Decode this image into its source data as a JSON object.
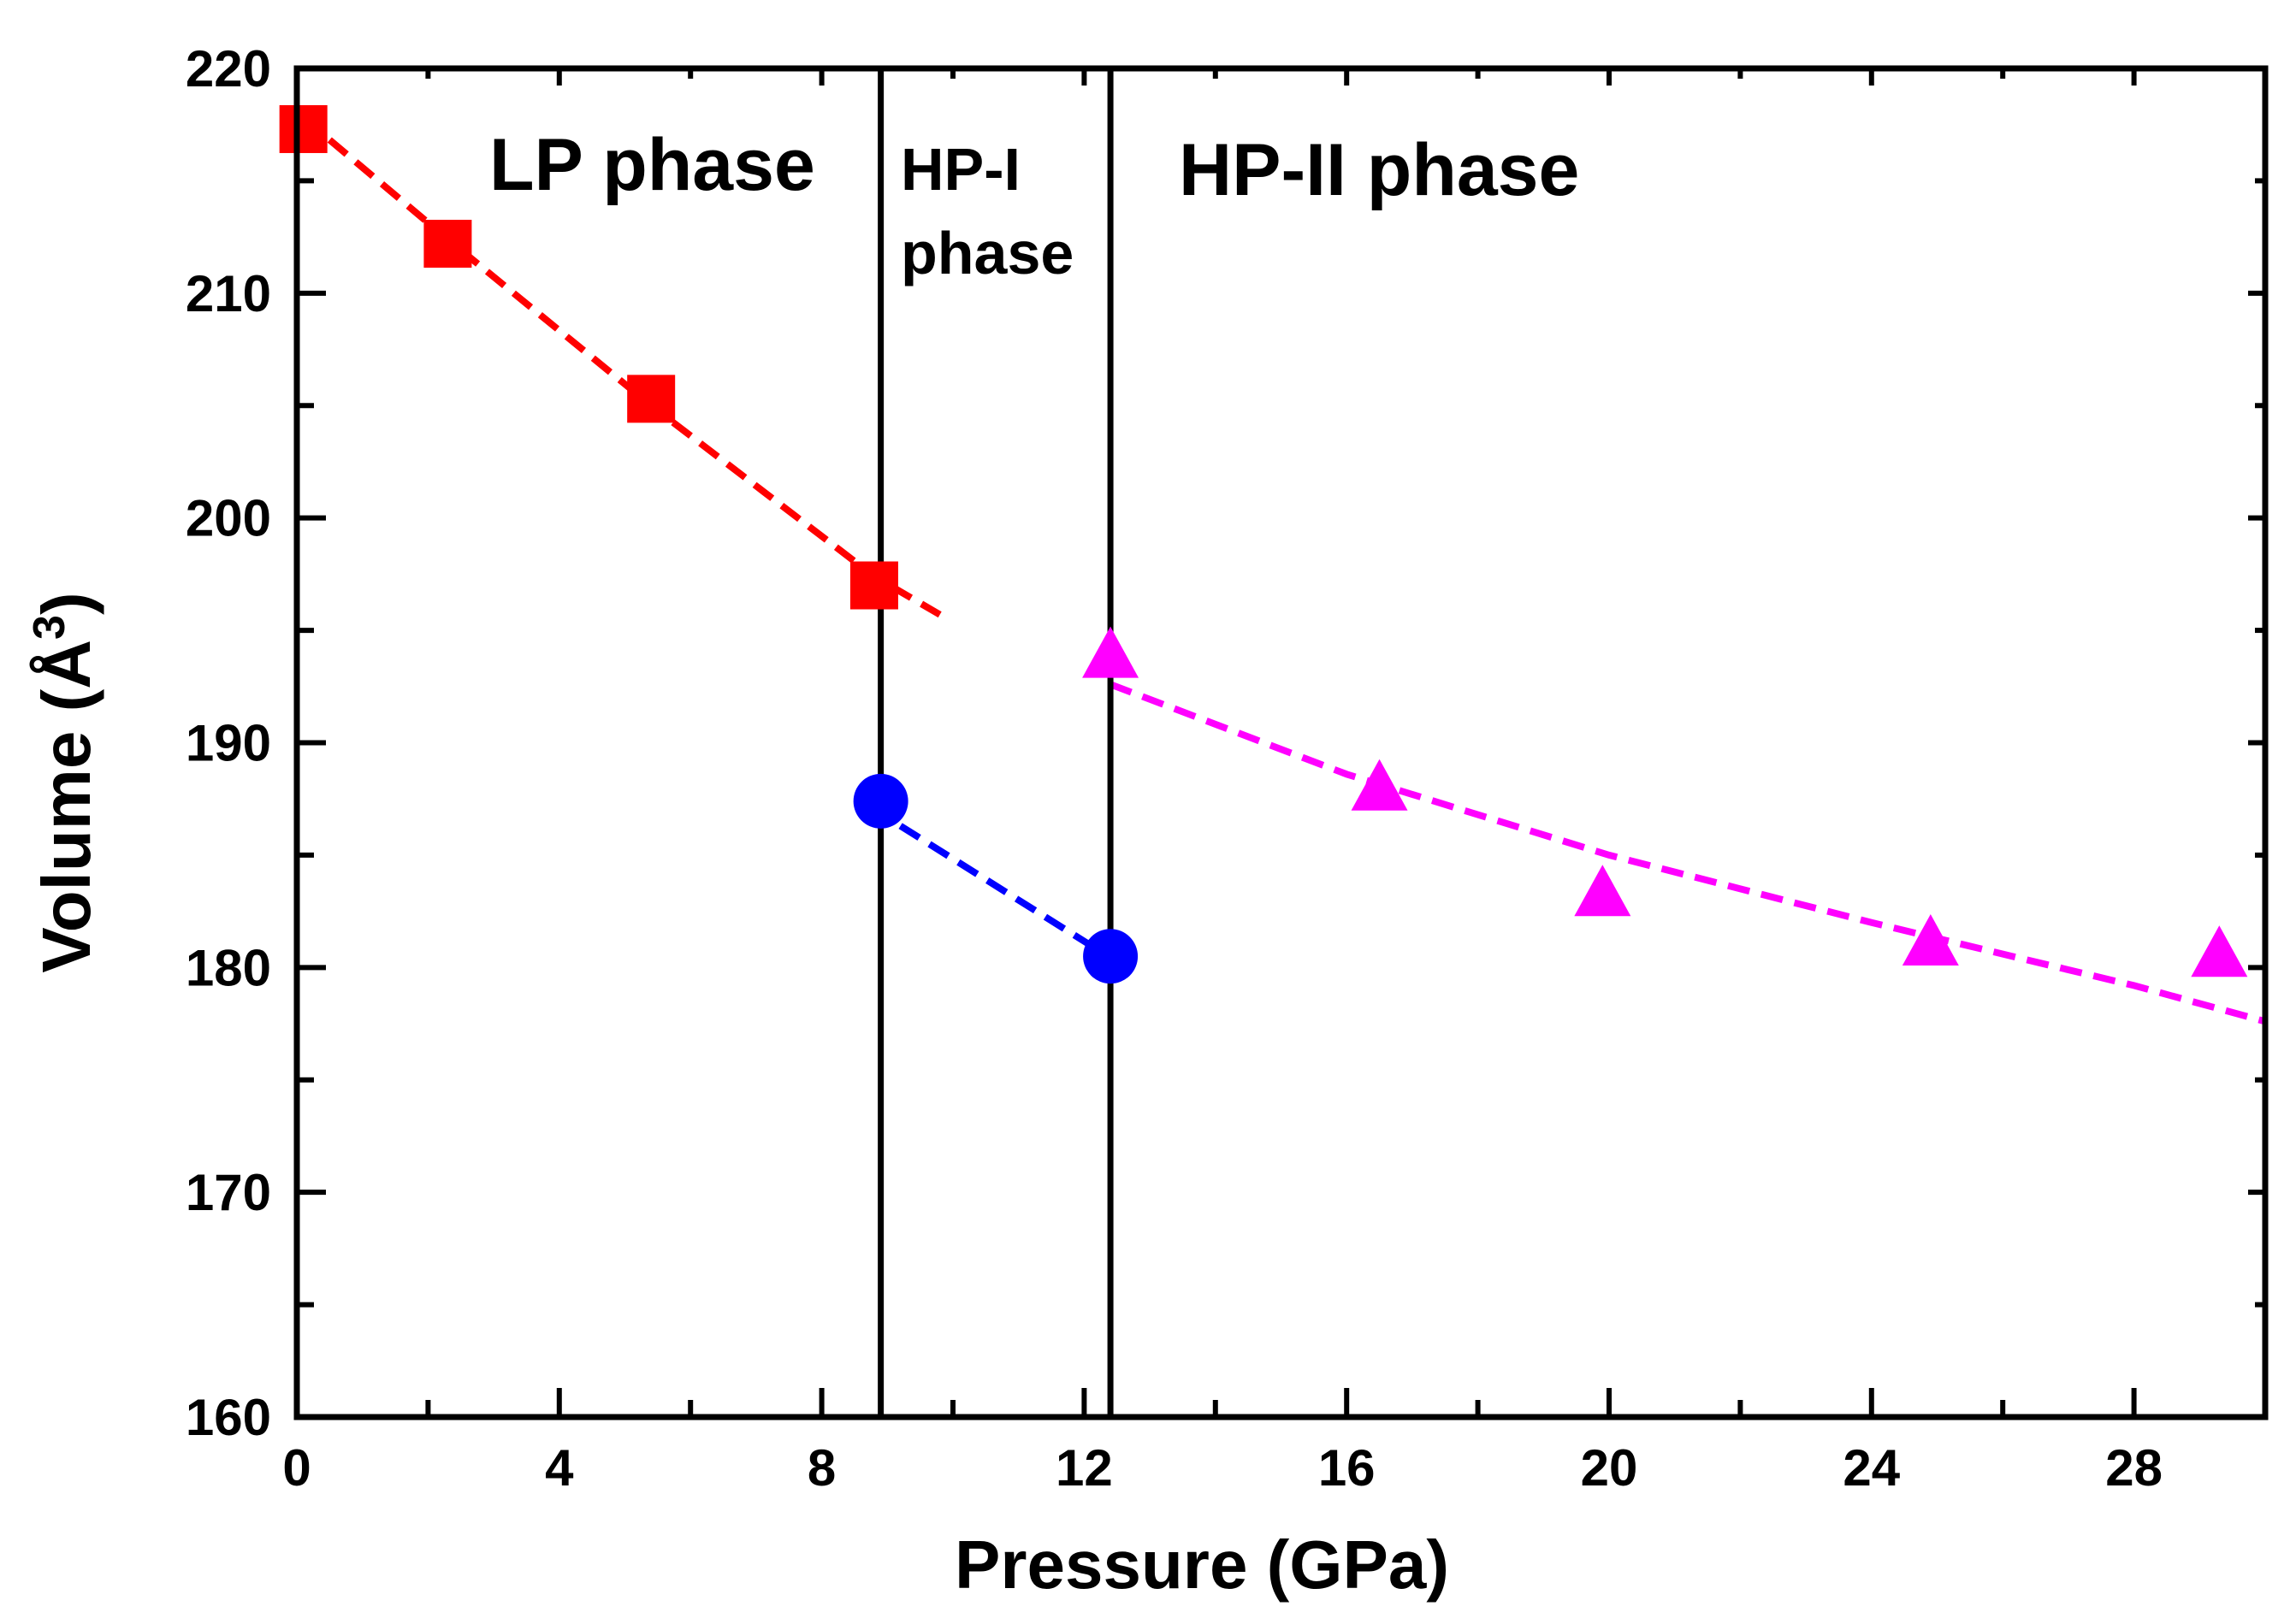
{
  "chart_data": {
    "type": "scatter",
    "title": "",
    "xlabel": "Pressure (GPa)",
    "ylabel_main": "Volume (Å",
    "ylabel_sup": "3",
    "ylabel_close": ")",
    "xlim": [
      0,
      30
    ],
    "ylim": [
      160,
      220
    ],
    "xticks": [
      0,
      4,
      8,
      12,
      16,
      20,
      24,
      28
    ],
    "yticks": [
      160,
      170,
      180,
      190,
      200,
      210,
      220
    ],
    "grid": false,
    "series": [
      {
        "marker": "square",
        "color": "#ff0000",
        "points": [
          [
            0.1,
            217.3
          ],
          [
            2.3,
            212.2
          ],
          [
            5.4,
            205.3
          ],
          [
            8.8,
            197.0
          ]
        ],
        "fit": [
          [
            0.1,
            217.8
          ],
          [
            2.3,
            212.4
          ],
          [
            5.4,
            205.0
          ],
          [
            8.8,
            197.4
          ],
          [
            9.8,
            195.7
          ]
        ]
      },
      {
        "marker": "circle",
        "color": "#0000ff",
        "points": [
          [
            8.9,
            187.4
          ],
          [
            12.4,
            180.5
          ]
        ],
        "fit": [
          [
            9.2,
            186.3
          ],
          [
            12.2,
            180.8
          ]
        ]
      },
      {
        "marker": "triangle",
        "color": "#ff00ff",
        "points": [
          [
            12.4,
            193.8
          ],
          [
            16.5,
            187.9
          ],
          [
            19.9,
            183.2
          ],
          [
            24.9,
            181.0
          ],
          [
            29.3,
            180.5
          ]
        ],
        "fit": [
          [
            12.4,
            192.6
          ],
          [
            16.0,
            188.6
          ],
          [
            20.0,
            185.0
          ],
          [
            24.0,
            182.0
          ],
          [
            28.0,
            179.2
          ],
          [
            30.0,
            177.6
          ]
        ]
      }
    ],
    "phase_boundaries": [
      8.9,
      12.4
    ],
    "annotations": [
      {
        "id": "lp",
        "lines": [
          "LP phase"
        ]
      },
      {
        "id": "hp1",
        "lines": [
          "HP-I",
          "phase"
        ]
      },
      {
        "id": "hp2",
        "lines": [
          "HP-II phase"
        ]
      }
    ]
  }
}
